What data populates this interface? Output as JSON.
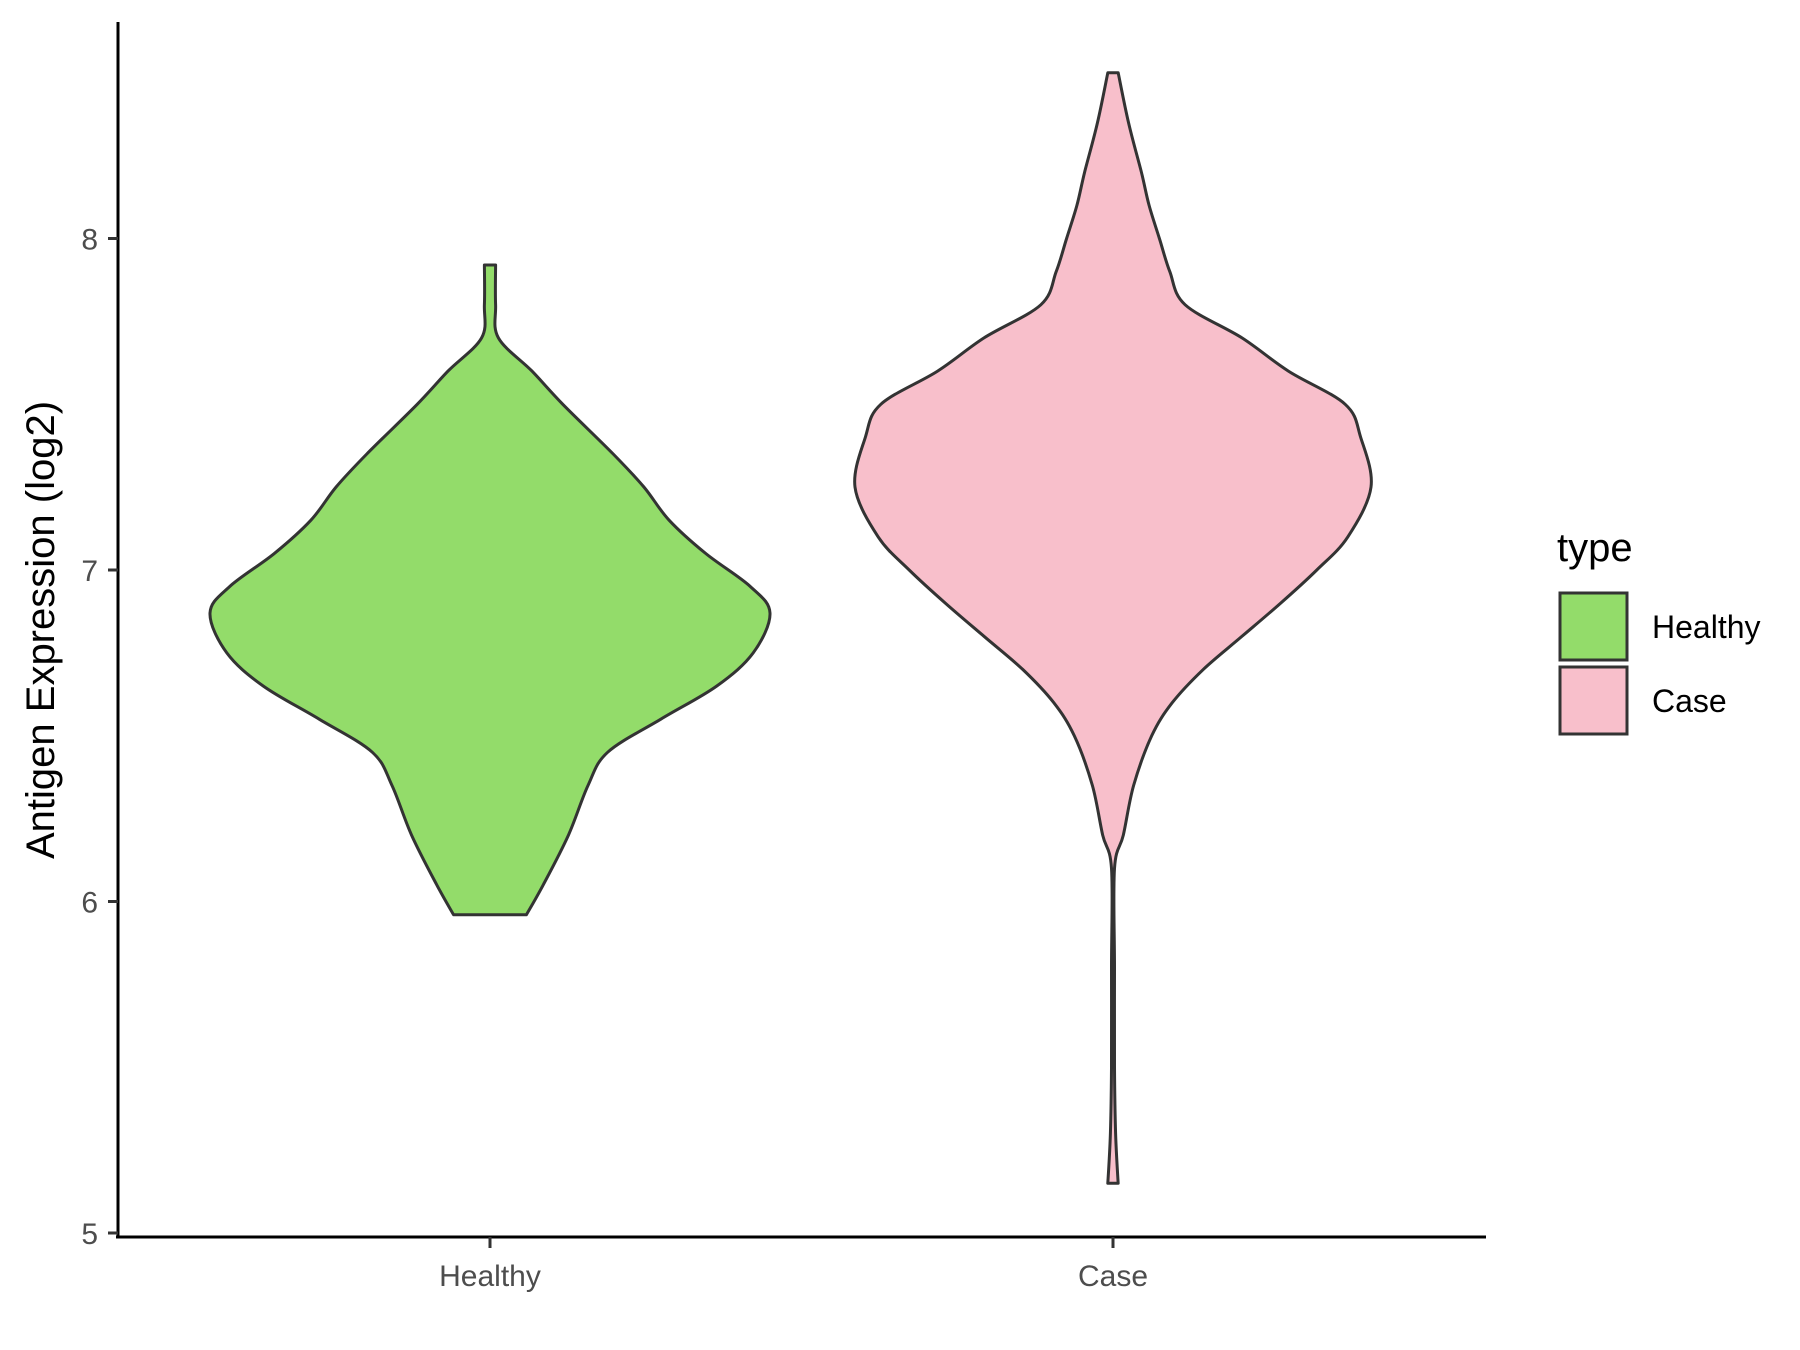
{
  "chart_data": {
    "type": "violin",
    "title": "",
    "xlabel": "",
    "ylabel": "Antigen Expression (log2)",
    "ylim": [
      5,
      8.55
    ],
    "yticks": [
      5,
      6,
      7,
      8
    ],
    "categories": [
      "Healthy",
      "Case"
    ],
    "grid": false,
    "legend": {
      "title": "type",
      "position": "right",
      "entries": [
        {
          "label": "Healthy",
          "color": "#93dc6a"
        },
        {
          "label": "Case",
          "color": "#f8bfcb"
        }
      ]
    },
    "series": [
      {
        "category": "Healthy",
        "color": "#93dc6a",
        "min": 5.96,
        "max": 7.92,
        "density_profile": [
          [
            5.96,
            0.13
          ],
          [
            6.05,
            0.19
          ],
          [
            6.2,
            0.28
          ],
          [
            6.35,
            0.35
          ],
          [
            6.45,
            0.42
          ],
          [
            6.55,
            0.61
          ],
          [
            6.65,
            0.81
          ],
          [
            6.75,
            0.94
          ],
          [
            6.87,
            1.0
          ],
          [
            6.95,
            0.93
          ],
          [
            7.05,
            0.77
          ],
          [
            7.15,
            0.64
          ],
          [
            7.25,
            0.55
          ],
          [
            7.35,
            0.44
          ],
          [
            7.5,
            0.26
          ],
          [
            7.6,
            0.15
          ],
          [
            7.7,
            0.03
          ],
          [
            7.8,
            0.02
          ],
          [
            7.92,
            0.02
          ]
        ]
      },
      {
        "category": "Case",
        "color": "#f8bfcb",
        "min": 5.15,
        "max": 8.5,
        "density_profile": [
          [
            5.15,
            0.02
          ],
          [
            5.3,
            0.01
          ],
          [
            5.5,
            0.0
          ],
          [
            5.8,
            0.0
          ],
          [
            6.1,
            0.0
          ],
          [
            6.2,
            0.04
          ],
          [
            6.35,
            0.08
          ],
          [
            6.5,
            0.15
          ],
          [
            6.6,
            0.23
          ],
          [
            6.7,
            0.35
          ],
          [
            6.8,
            0.5
          ],
          [
            6.9,
            0.65
          ],
          [
            7.0,
            0.79
          ],
          [
            7.1,
            0.91
          ],
          [
            7.25,
            1.0
          ],
          [
            7.4,
            0.96
          ],
          [
            7.5,
            0.9
          ],
          [
            7.6,
            0.68
          ],
          [
            7.7,
            0.5
          ],
          [
            7.8,
            0.28
          ],
          [
            7.9,
            0.22
          ],
          [
            8.0,
            0.18
          ],
          [
            8.1,
            0.14
          ],
          [
            8.2,
            0.11
          ],
          [
            8.35,
            0.06
          ],
          [
            8.5,
            0.02
          ]
        ]
      }
    ]
  }
}
